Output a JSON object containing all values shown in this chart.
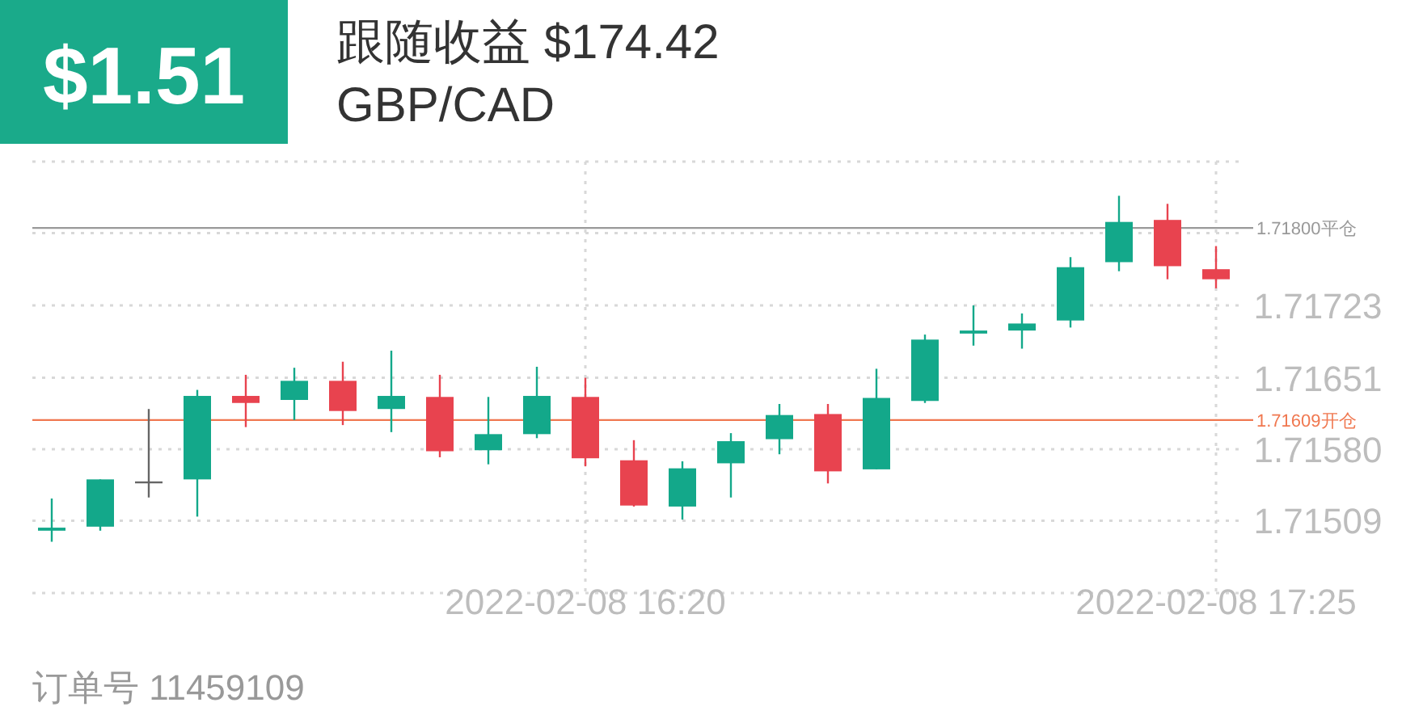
{
  "chart_data": {
    "type": "candlestick",
    "title": "跟随收益 $174.42",
    "subtitle": "GBP/CAD",
    "annotations": [
      "$1.51",
      "订单号 11459109"
    ],
    "x": [
      "2022-02-08T15:25",
      "2022-02-08T15:30",
      "2022-02-08T15:35",
      "2022-02-08T15:40",
      "2022-02-08T15:45",
      "2022-02-08T15:50",
      "2022-02-08T15:55",
      "2022-02-08T16:00",
      "2022-02-08T16:05",
      "2022-02-08T16:10",
      "2022-02-08T16:15",
      "2022-02-08T16:20",
      "2022-02-08T16:25",
      "2022-02-08T16:30",
      "2022-02-08T16:35",
      "2022-02-08T16:40",
      "2022-02-08T16:45",
      "2022-02-08T16:50",
      "2022-02-08T16:55",
      "2022-02-08T17:00",
      "2022-02-08T17:05",
      "2022-02-08T17:10",
      "2022-02-08T17:15",
      "2022-02-08T17:20",
      "2022-02-08T17:25"
    ],
    "ohlc": [
      [
        1.71499,
        1.71531,
        1.71488,
        1.71502
      ],
      [
        1.71503,
        1.7155,
        1.71499,
        1.7155
      ],
      [
        1.71548,
        1.7162,
        1.71532,
        1.71548
      ],
      [
        1.7155,
        1.71639,
        1.71513,
        1.71633
      ],
      [
        1.71633,
        1.71654,
        1.71602,
        1.71626
      ],
      [
        1.71629,
        1.71661,
        1.71609,
        1.71648
      ],
      [
        1.71648,
        1.71667,
        1.71604,
        1.71618
      ],
      [
        1.7162,
        1.71678,
        1.71597,
        1.71633
      ],
      [
        1.71632,
        1.71654,
        1.71572,
        1.71578
      ],
      [
        1.71579,
        1.71632,
        1.71565,
        1.71595
      ],
      [
        1.71595,
        1.71662,
        1.71591,
        1.71633
      ],
      [
        1.71632,
        1.71651,
        1.71563,
        1.71571
      ],
      [
        1.71569,
        1.71589,
        1.71523,
        1.71524
      ],
      [
        1.71523,
        1.71568,
        1.7151,
        1.71561
      ],
      [
        1.71566,
        1.71596,
        1.71532,
        1.71588
      ],
      [
        1.7159,
        1.71625,
        1.71575,
        1.71614
      ],
      [
        1.71615,
        1.71625,
        1.71546,
        1.71558
      ],
      [
        1.7156,
        1.7166,
        1.7156,
        1.71631
      ],
      [
        1.71628,
        1.71694,
        1.71626,
        1.71689
      ],
      [
        1.71695,
        1.71723,
        1.71683,
        1.71698
      ],
      [
        1.71698,
        1.71715,
        1.7168,
        1.71705
      ],
      [
        1.71708,
        1.71771,
        1.71701,
        1.71761
      ],
      [
        1.71766,
        1.71832,
        1.71757,
        1.71806
      ],
      [
        1.71808,
        1.71824,
        1.71749,
        1.71762
      ],
      [
        1.71759,
        1.71782,
        1.7174,
        1.71749
      ]
    ],
    "colors": [
      "#13a88a",
      "#13a88a",
      "#666666",
      "#13a88a",
      "#e8434f",
      "#13a88a",
      "#e8434f",
      "#13a88a",
      "#e8434f",
      "#13a88a",
      "#13a88a",
      "#e8434f",
      "#e8434f",
      "#13a88a",
      "#13a88a",
      "#13a88a",
      "#e8434f",
      "#13a88a",
      "#13a88a",
      "#13a88a",
      "#13a88a",
      "#13a88a",
      "#13a88a",
      "#e8434f",
      "#e8434f"
    ],
    "xlim": [
      "2022-02-08T15:23",
      "2022-02-08T17:28"
    ],
    "xticks": [
      {
        "value": "2022-02-08T16:20",
        "label": "2022-02-08 16:20"
      },
      {
        "value": "2022-02-08T17:25",
        "label": "2022-02-08 17:25"
      }
    ],
    "ylim": [
      1.71437,
      1.71866
    ],
    "yticks": [
      1.71509,
      {
        "value": 1.7158,
        "label": "1.71580"
      },
      1.71651,
      1.71723,
      {
        "value": 1.71795,
        "label": null
      }
    ],
    "grid": true,
    "ref_lines": [
      {
        "axis": "y",
        "value": 1.718,
        "label": "1.71800平仓",
        "color": "#999999"
      },
      {
        "axis": "y",
        "value": 1.71609,
        "label": "1.71609开仓",
        "color": "#f07850"
      }
    ]
  }
}
